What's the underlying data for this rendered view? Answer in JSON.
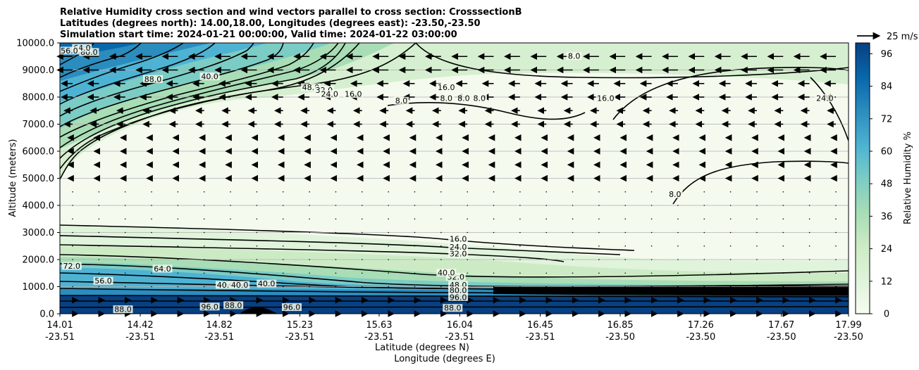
{
  "chart_data": {
    "type": "contour",
    "title_lines": [
      "Relative Humidity cross section and wind vectors parallel to cross section: CrosssectionB",
      "Latitudes (degrees north): 14.00,18.00, Longitudes (degrees east): -23.50,-23.50",
      "Simulation start time: 2024-01-21 00:00:00, Valid time: 2024-01-22 03:00:00"
    ],
    "ylabel": "Altitude (meters)",
    "xlabel_lat": "Latitude (degrees N)",
    "xlabel_lon": "Longitude (degrees E)",
    "ylim": [
      0,
      10000
    ],
    "y_ticks": [
      "0.0",
      "1000.0",
      "2000.0",
      "3000.0",
      "4000.0",
      "5000.0",
      "6000.0",
      "7000.0",
      "8000.0",
      "9000.0",
      "10000.0"
    ],
    "x_ticks_lat": [
      "14.01",
      "14.42",
      "14.82",
      "15.23",
      "15.63",
      "16.04",
      "16.45",
      "16.85",
      "17.26",
      "17.67",
      "17.99"
    ],
    "x_ticks_lon": [
      "-23.51",
      "-23.51",
      "-23.51",
      "-23.51",
      "-23.51",
      "-23.51",
      "-23.51",
      "-23.50",
      "-23.50",
      "-23.50",
      "-23.50"
    ],
    "x_tick_fraction": [
      0.0,
      0.1019,
      0.2021,
      0.3042,
      0.4048,
      0.507,
      0.6091,
      0.7105,
      0.8126,
      0.9148,
      1.0
    ],
    "colorbar": {
      "label": "Relative Humidity %",
      "ticks": [
        "0",
        "12",
        "24",
        "36",
        "48",
        "60",
        "72",
        "84",
        "96"
      ],
      "range": [
        0,
        100
      ],
      "colors": [
        "#f7fcf0",
        "#e0f3db",
        "#ccebc5",
        "#a8ddb5",
        "#7bccc4",
        "#4eb3d3",
        "#2b8cbe",
        "#0868ac",
        "#084081"
      ]
    },
    "wind_key_label": "25 m/s",
    "contour_labels": [
      {
        "text": "80.0",
        "x": 0.037,
        "alt": 9600
      },
      {
        "text": "64.0",
        "x": 0.028,
        "alt": 9750
      },
      {
        "text": "56.0",
        "x": 0.012,
        "alt": 9650
      },
      {
        "text": "88.0",
        "x": 0.118,
        "alt": 8600
      },
      {
        "text": "40.0",
        "x": 0.19,
        "alt": 8700
      },
      {
        "text": "48.0",
        "x": 0.318,
        "alt": 8300
      },
      {
        "text": "32.0",
        "x": 0.335,
        "alt": 8200
      },
      {
        "text": "24.0",
        "x": 0.342,
        "alt": 8050
      },
      {
        "text": "16.0",
        "x": 0.372,
        "alt": 8050
      },
      {
        "text": "8.0",
        "x": 0.433,
        "alt": 7800
      },
      {
        "text": "16.0",
        "x": 0.49,
        "alt": 8300
      },
      {
        "text": "8.0",
        "x": 0.49,
        "alt": 7900
      },
      {
        "text": "8.0",
        "x": 0.512,
        "alt": 7900
      },
      {
        "text": "8.0",
        "x": 0.532,
        "alt": 7900
      },
      {
        "text": "8.0",
        "x": 0.652,
        "alt": 9450
      },
      {
        "text": "16.0",
        "x": 0.692,
        "alt": 7900
      },
      {
        "text": "24.0",
        "x": 0.97,
        "alt": 7900
      },
      {
        "text": "8.0",
        "x": 0.78,
        "alt": 4350
      },
      {
        "text": "16.0",
        "x": 0.505,
        "alt": 2700
      },
      {
        "text": "24.0",
        "x": 0.505,
        "alt": 2400
      },
      {
        "text": "32.0",
        "x": 0.505,
        "alt": 2150
      },
      {
        "text": "32.0",
        "x": 0.502,
        "alt": 1300
      },
      {
        "text": "40.0",
        "x": 0.49,
        "alt": 1450
      },
      {
        "text": "40.0",
        "x": 0.21,
        "alt": 1000
      },
      {
        "text": "40.0",
        "x": 0.228,
        "alt": 1000
      },
      {
        "text": "40.0",
        "x": 0.262,
        "alt": 1050
      },
      {
        "text": "64.0",
        "x": 0.13,
        "alt": 1600
      },
      {
        "text": "72.0",
        "x": 0.015,
        "alt": 1700
      },
      {
        "text": "56.0",
        "x": 0.055,
        "alt": 1150
      },
      {
        "text": "88.0",
        "x": 0.08,
        "alt": 100
      },
      {
        "text": "88.0",
        "x": 0.22,
        "alt": 250
      },
      {
        "text": "96.0",
        "x": 0.19,
        "alt": 200
      },
      {
        "text": "96.0",
        "x": 0.294,
        "alt": 180
      },
      {
        "text": "48.0",
        "x": 0.505,
        "alt": 1000
      },
      {
        "text": "80.0",
        "x": 0.505,
        "alt": 800
      },
      {
        "text": "96.0",
        "x": 0.505,
        "alt": 550
      },
      {
        "text": "88.0",
        "x": 0.498,
        "alt": 150
      }
    ]
  }
}
